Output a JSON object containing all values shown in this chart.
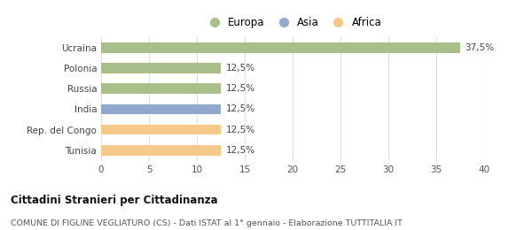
{
  "categories": [
    "Tunisia",
    "Rep. del Congo",
    "India",
    "Russia",
    "Polonia",
    "Ucraina"
  ],
  "values": [
    12.5,
    12.5,
    12.5,
    12.5,
    12.5,
    37.5
  ],
  "colors": [
    "#f5c98a",
    "#f5c98a",
    "#8fa8cc",
    "#a8bf8a",
    "#a8bf8a",
    "#a8bf8a"
  ],
  "bar_labels": [
    "12,5%",
    "12,5%",
    "12,5%",
    "12,5%",
    "12,5%",
    "37,5%"
  ],
  "xlim": [
    0,
    40
  ],
  "xticks": [
    0,
    5,
    10,
    15,
    20,
    25,
    30,
    35,
    40
  ],
  "legend_labels": [
    "Europa",
    "Asia",
    "Africa"
  ],
  "legend_colors": [
    "#a8bf8a",
    "#8fa8cc",
    "#f5c98a"
  ],
  "title": "Cittadini Stranieri per Cittadinanza",
  "subtitle": "COMUNE DI FIGLINE VEGLIATURO (CS) - Dati ISTAT al 1° gennaio - Elaborazione TUTTITALIA.IT",
  "background_color": "#ffffff",
  "grid_color": "#e0e0e0",
  "bar_height": 0.5
}
